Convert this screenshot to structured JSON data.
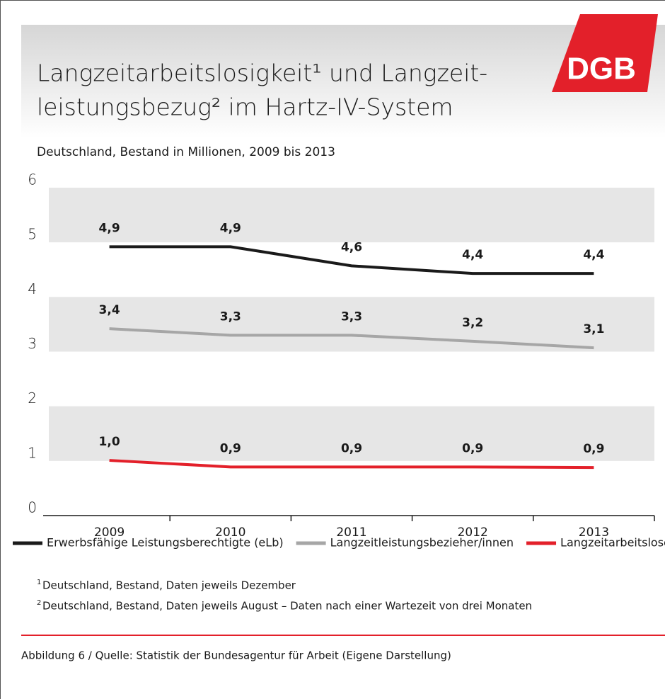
{
  "chart_data": {
    "type": "line",
    "title": [
      "Langzeitarbeitslosigkeit¹ und Langzeit-",
      "leistungsbezug² im Hartz-IV-System"
    ],
    "logo": "DGB",
    "subtitle": "Deutschland, Bestand in Millionen, 2009 bis 2013",
    "categories": [
      "2009",
      "2010",
      "2011",
      "2012",
      "2013"
    ],
    "series": [
      {
        "name": "Erwerbsfähige Leistungsberechtigte (eLb)",
        "color": "#1a1a1a",
        "values": [
          4.92,
          4.92,
          4.57,
          4.43,
          4.43
        ],
        "value_labels": [
          "4,9",
          "4,9",
          "4,6",
          "4,4",
          "4,4"
        ]
      },
      {
        "name": "Langzeitleistungsbezieher/innen",
        "color": "#a6a6a6",
        "values": [
          3.42,
          3.3,
          3.3,
          3.19,
          3.07
        ],
        "value_labels": [
          "3,4",
          "3,3",
          "3,3",
          "3,2",
          "3,1"
        ]
      },
      {
        "name": "Langzeitarbeitslose SGB II",
        "color": "#e3202a",
        "values": [
          1.01,
          0.89,
          0.89,
          0.89,
          0.88
        ],
        "value_labels": [
          "1,0",
          "0,9",
          "0,9",
          "0,9",
          "0,9"
        ]
      }
    ],
    "ylim": [
      0,
      6
    ],
    "yticks": [
      0,
      1,
      2,
      3,
      4,
      5,
      6
    ],
    "grid": "bands",
    "footnotes": [
      {
        "marker": "1",
        "text": "Deutschland, Bestand, Daten jeweils Dezember"
      },
      {
        "marker": "2",
        "text": "Deutschland, Bestand, Daten jeweils August – Daten nach einer Wartezeit von drei Monaten"
      }
    ],
    "source": "Abbildung 6 / Quelle: Statistik der Bundesagentur für Arbeit (Eigene Darstellung)"
  }
}
